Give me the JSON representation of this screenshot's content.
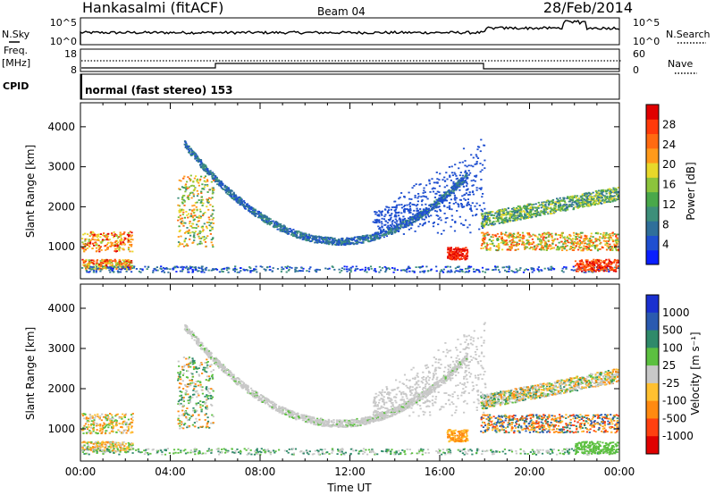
{
  "header": {
    "station": "Hankasalmi (fitACF)",
    "beam": "Beam 04",
    "date": "28/Feb/2014"
  },
  "strip": {
    "nsky_label": "N.Sky",
    "nsky_tick_hi": "10^5",
    "nsky_tick_lo": "10^0",
    "nsearch_label": "N.Search",
    "nsearch_tick_hi": "10^5",
    "nsearch_tick_lo": "10^0",
    "freq_label_line1": "Freq.",
    "freq_label_line2": "[MHz]",
    "freq_tick_hi": "18",
    "freq_tick_lo": "8",
    "nave_label": "Nave",
    "nave_tick_hi": "60",
    "nave_tick_lo": "0",
    "cpid_label": "CPID",
    "cpid_text": "normal (fast stereo) 153"
  },
  "chart_data": [
    {
      "type": "heatmap",
      "panel": "power",
      "ylabel": "Slant Range [km]",
      "xlabel": "Time UT",
      "xticks": [
        "00:00",
        "04:00",
        "08:00",
        "12:00",
        "16:00",
        "20:00",
        "00:00"
      ],
      "yticks": [
        "1000",
        "2000",
        "3000",
        "4000"
      ],
      "ylim": [
        200,
        4600
      ],
      "xlim_hours": [
        0,
        24
      ],
      "colorbar_label": "Power [dB]",
      "colorbar_ticks": [
        "4",
        "8",
        "12",
        "16",
        "20",
        "24",
        "28"
      ],
      "colorbar_colors": [
        "#0a1eff",
        "#1f4fd0",
        "#2f6f9a",
        "#3d8f7a",
        "#49a84a",
        "#8cc43c",
        "#e8d82a",
        "#ff9a1a",
        "#ff6a10",
        "#ff3a0a",
        "#e00000"
      ]
    },
    {
      "type": "heatmap",
      "panel": "velocity",
      "ylabel": "Slant Range [km]",
      "xlabel": "Time UT",
      "xticks": [
        "00:00",
        "04:00",
        "08:00",
        "12:00",
        "16:00",
        "20:00",
        "00:00"
      ],
      "yticks": [
        "1000",
        "2000",
        "3000",
        "4000"
      ],
      "ylim": [
        200,
        4600
      ],
      "xlim_hours": [
        0,
        24
      ],
      "colorbar_label": "Velocity [m s⁻¹]",
      "colorbar_ticks": [
        "1000",
        "500",
        "100",
        "25",
        "-25",
        "-100",
        "-500",
        "-1000"
      ],
      "colorbar_colors": [
        "#1a30d0",
        "#2a5ab0",
        "#2f8a6a",
        "#5cc040",
        "#c8c8c8",
        "#ffc030",
        "#ff8a10",
        "#ff4010",
        "#e00000"
      ]
    }
  ],
  "xaxis_title": "Time UT"
}
